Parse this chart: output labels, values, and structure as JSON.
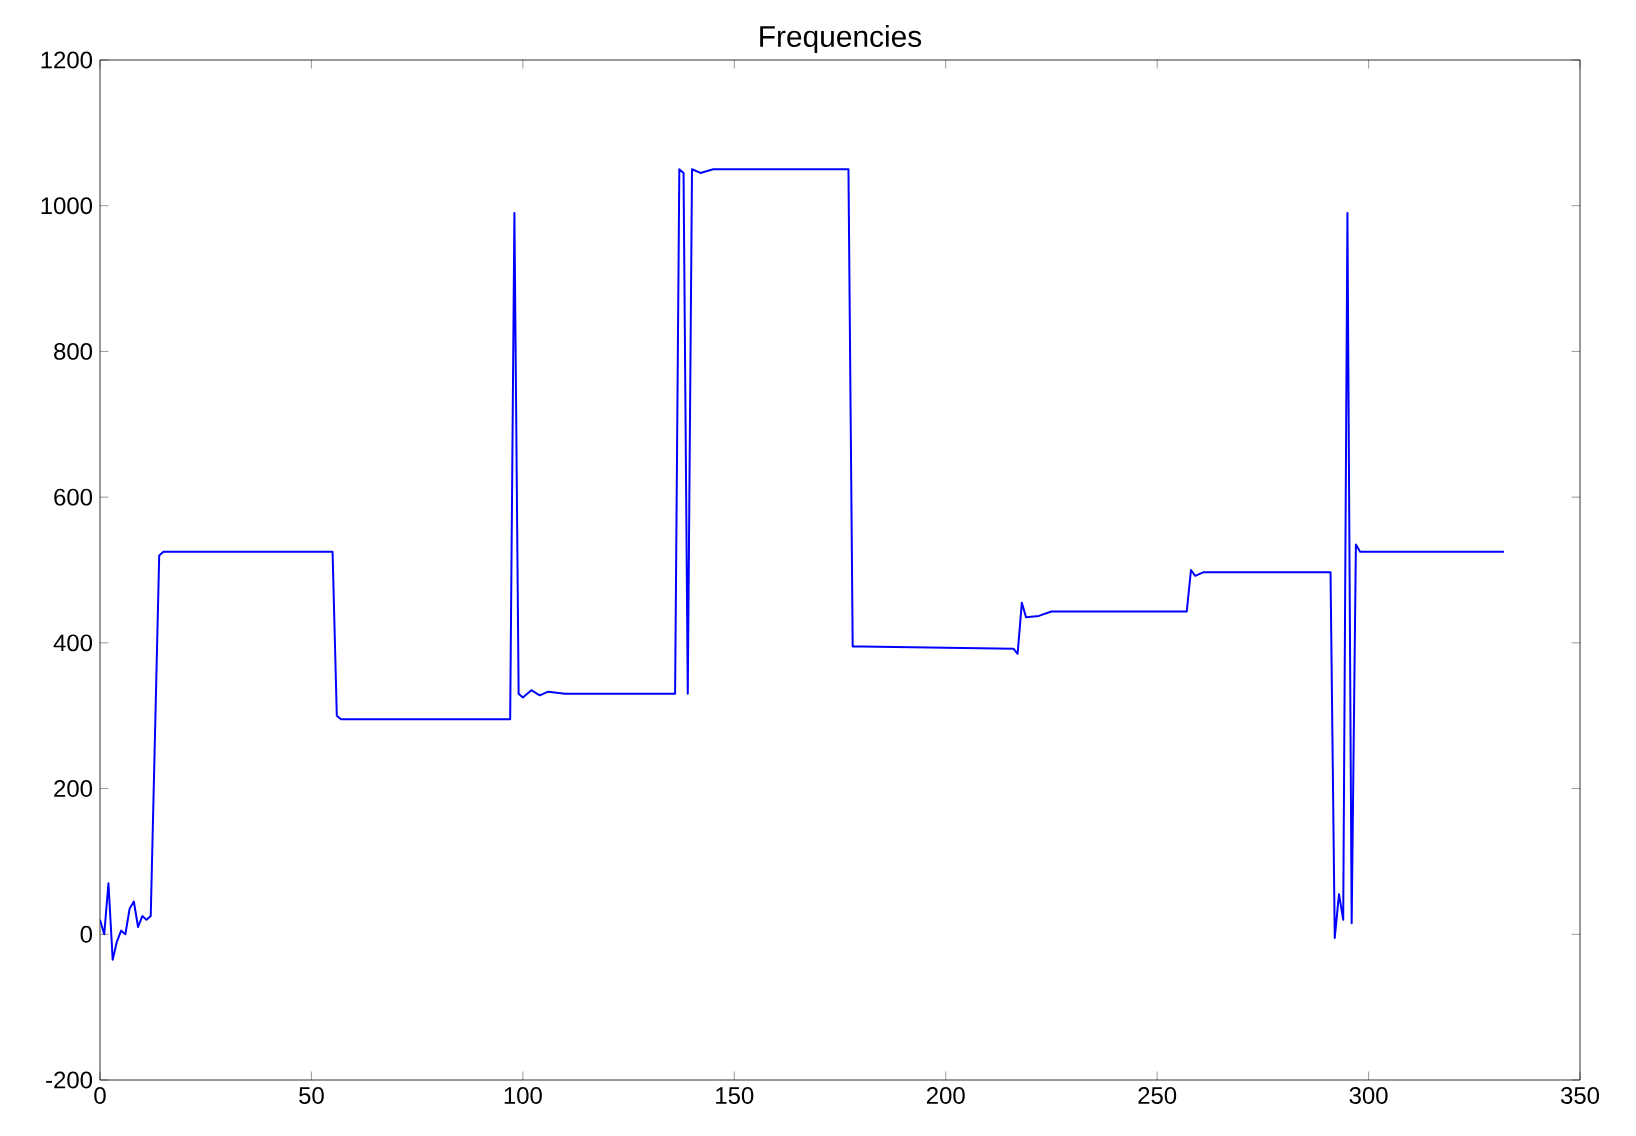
{
  "chart_data": {
    "type": "line",
    "title": "Frequencies",
    "xlim": [
      0,
      350
    ],
    "ylim": [
      -200,
      1200
    ],
    "xticks": [
      0,
      50,
      100,
      150,
      200,
      250,
      300,
      350
    ],
    "yticks": [
      -200,
      0,
      200,
      400,
      600,
      800,
      1000,
      1200
    ],
    "grid": false,
    "marker": "none",
    "line_style": "solid",
    "series": [
      {
        "color": "#0000ff",
        "x": [
          0,
          1,
          2,
          3,
          4,
          5,
          6,
          7,
          8,
          9,
          10,
          11,
          12,
          14,
          15,
          30,
          55,
          56,
          57,
          60,
          97,
          98,
          99,
          100,
          102,
          104,
          106,
          110,
          136,
          137,
          138,
          139,
          140,
          142,
          145,
          177,
          178,
          180,
          216,
          217,
          218,
          219,
          222,
          225,
          257,
          258,
          259,
          261,
          291,
          292,
          293,
          294,
          295,
          296,
          297,
          298,
          332
        ],
        "values": [
          20,
          0,
          70,
          -35,
          -10,
          5,
          0,
          35,
          45,
          10,
          25,
          20,
          25,
          520,
          525,
          525,
          525,
          300,
          295,
          295,
          295,
          990,
          330,
          325,
          335,
          328,
          333,
          330,
          330,
          1050,
          1045,
          330,
          1050,
          1045,
          1050,
          1050,
          395,
          395,
          392,
          385,
          455,
          435,
          437,
          443,
          443,
          500,
          492,
          497,
          497,
          -5,
          55,
          20,
          990,
          15,
          535,
          525,
          525
        ]
      }
    ]
  }
}
